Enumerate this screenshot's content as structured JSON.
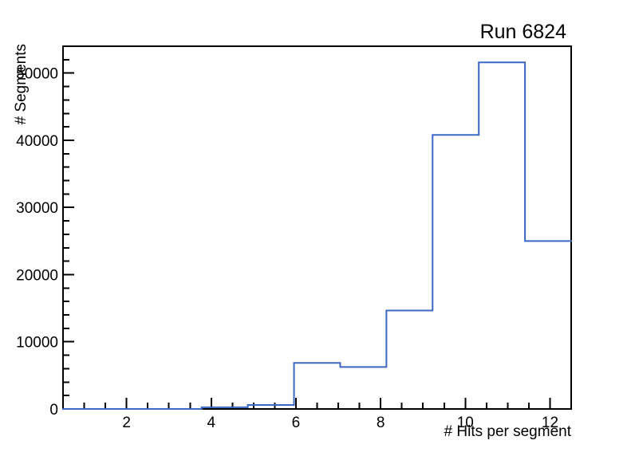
{
  "page": {
    "background_color": "#ffffff"
  },
  "chart_data": {
    "type": "bar",
    "style": "step-histogram",
    "title": "Run 6824",
    "xlabel": "# Hits per segment",
    "ylabel": "# Segments",
    "bin_edges": [
      0.5,
      1.5909,
      2.6818,
      3.7727,
      4.8636,
      5.9545,
      7.0455,
      8.1364,
      9.2273,
      10.3182,
      11.4091,
      12.5
    ],
    "values": [
      0,
      0,
      0,
      250,
      600,
      6850,
      6250,
      14650,
      40800,
      51600,
      25000
    ],
    "xlim": [
      0.5,
      12.5
    ],
    "ylim": [
      0,
      54000
    ],
    "x_major_ticks": [
      2,
      4,
      6,
      8,
      10,
      12
    ],
    "x_minor_step": 0.5,
    "y_major_ticks": [
      0,
      10000,
      20000,
      30000,
      40000,
      50000
    ],
    "y_minor_step": 2000,
    "grid": false,
    "legend": null,
    "line_color": "#3c68c5",
    "frame_color": "#000000",
    "text_color": "#000000",
    "tick_label_font_px": 19
  }
}
